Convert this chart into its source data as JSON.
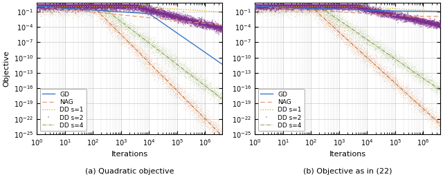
{
  "title_a": "(a) Quadratic objective",
  "title_b": "(b) Objective as in (22)",
  "xlabel": "Iterations",
  "ylabel": "Objective",
  "colors": {
    "GD": "#3878C8",
    "NAG": "#E8956D",
    "DD_s1": "#D4AA00",
    "DD_s2": "#7B2D8B",
    "DD_s4_orange": "#C05000",
    "DD_s4_green": "#6B8E23"
  },
  "seed": 42
}
